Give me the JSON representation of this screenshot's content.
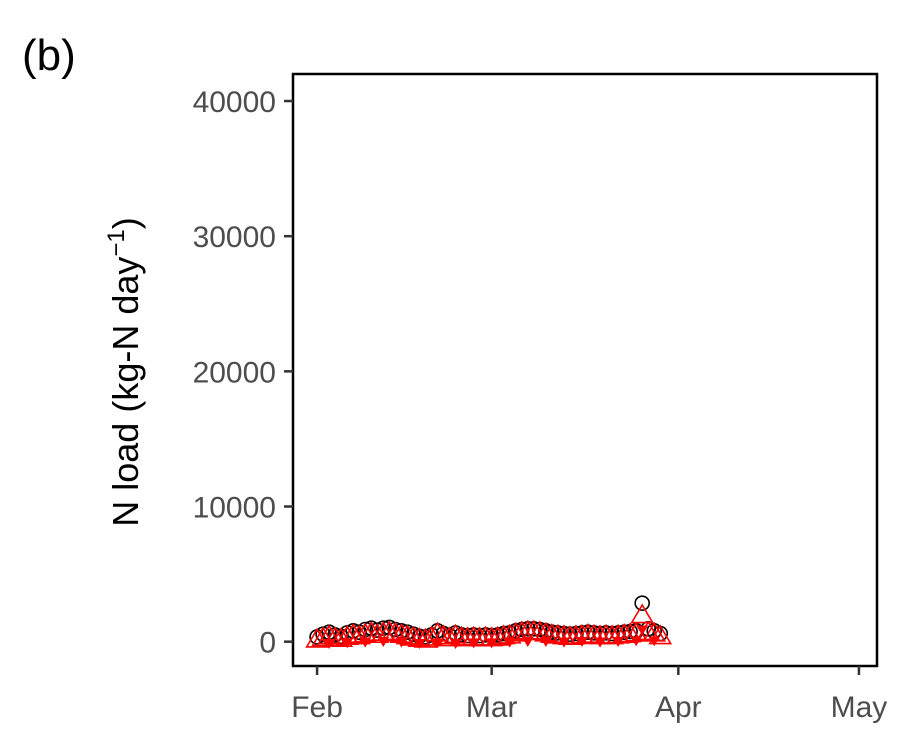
{
  "panel_label": "(b)",
  "chart_data": {
    "type": "scatter",
    "title": "",
    "xlabel": "",
    "ylabel": "N load (kg-N day",
    "ylabel_sup": "−1",
    "ylabel_close": ")",
    "xlim": [
      "2000-01-28",
      "2000-05-04"
    ],
    "ylim": [
      -1800,
      42000
    ],
    "x_ticks": [
      {
        "date": "2000-02-01",
        "label": "Feb"
      },
      {
        "date": "2000-03-01",
        "label": "Mar"
      },
      {
        "date": "2000-04-01",
        "label": "Apr"
      },
      {
        "date": "2000-05-01",
        "label": "May"
      }
    ],
    "y_ticks": [
      {
        "value": 0,
        "label": "0"
      },
      {
        "value": 10000,
        "label": "10000"
      },
      {
        "value": 20000,
        "label": "20000"
      },
      {
        "value": 30000,
        "label": "30000"
      },
      {
        "value": 40000,
        "label": "40000"
      }
    ],
    "grid": false,
    "series": [
      {
        "marker": "circle",
        "color": "#000000",
        "points": [
          {
            "x": "2000-02-01",
            "y": 350
          },
          {
            "x": "2000-02-02",
            "y": 550
          },
          {
            "x": "2000-02-03",
            "y": 700
          },
          {
            "x": "2000-02-04",
            "y": 500
          },
          {
            "x": "2000-02-05",
            "y": 400
          },
          {
            "x": "2000-02-06",
            "y": 650
          },
          {
            "x": "2000-02-07",
            "y": 800
          },
          {
            "x": "2000-02-08",
            "y": 700
          },
          {
            "x": "2000-02-09",
            "y": 900
          },
          {
            "x": "2000-02-10",
            "y": 1000
          },
          {
            "x": "2000-02-11",
            "y": 850
          },
          {
            "x": "2000-02-12",
            "y": 1000
          },
          {
            "x": "2000-02-13",
            "y": 1050
          },
          {
            "x": "2000-02-14",
            "y": 900
          },
          {
            "x": "2000-02-15",
            "y": 800
          },
          {
            "x": "2000-02-16",
            "y": 700
          },
          {
            "x": "2000-02-17",
            "y": 550
          },
          {
            "x": "2000-02-18",
            "y": 400
          },
          {
            "x": "2000-02-19",
            "y": 350
          },
          {
            "x": "2000-02-20",
            "y": 500
          },
          {
            "x": "2000-02-21",
            "y": 800
          },
          {
            "x": "2000-02-22",
            "y": 600
          },
          {
            "x": "2000-02-23",
            "y": 450
          },
          {
            "x": "2000-02-24",
            "y": 650
          },
          {
            "x": "2000-02-25",
            "y": 500
          },
          {
            "x": "2000-02-26",
            "y": 450
          },
          {
            "x": "2000-02-27",
            "y": 500
          },
          {
            "x": "2000-02-28",
            "y": 450
          },
          {
            "x": "2000-02-29",
            "y": 500
          },
          {
            "x": "2000-03-01",
            "y": 450
          },
          {
            "x": "2000-03-02",
            "y": 500
          },
          {
            "x": "2000-03-03",
            "y": 600
          },
          {
            "x": "2000-03-04",
            "y": 650
          },
          {
            "x": "2000-03-05",
            "y": 800
          },
          {
            "x": "2000-03-06",
            "y": 900
          },
          {
            "x": "2000-03-07",
            "y": 950
          },
          {
            "x": "2000-03-08",
            "y": 950
          },
          {
            "x": "2000-03-09",
            "y": 900
          },
          {
            "x": "2000-03-10",
            "y": 800
          },
          {
            "x": "2000-03-11",
            "y": 700
          },
          {
            "x": "2000-03-12",
            "y": 650
          },
          {
            "x": "2000-03-13",
            "y": 600
          },
          {
            "x": "2000-03-14",
            "y": 550
          },
          {
            "x": "2000-03-15",
            "y": 600
          },
          {
            "x": "2000-03-16",
            "y": 650
          },
          {
            "x": "2000-03-17",
            "y": 700
          },
          {
            "x": "2000-03-18",
            "y": 650
          },
          {
            "x": "2000-03-19",
            "y": 600
          },
          {
            "x": "2000-03-20",
            "y": 650
          },
          {
            "x": "2000-03-21",
            "y": 600
          },
          {
            "x": "2000-03-22",
            "y": 650
          },
          {
            "x": "2000-03-23",
            "y": 700
          },
          {
            "x": "2000-03-24",
            "y": 750
          },
          {
            "x": "2000-03-25",
            "y": 800
          },
          {
            "x": "2000-03-26",
            "y": 2850
          },
          {
            "x": "2000-03-27",
            "y": 950
          },
          {
            "x": "2000-03-28",
            "y": 800
          },
          {
            "x": "2000-03-29",
            "y": 600
          }
        ]
      },
      {
        "marker": "triangle",
        "color": "#ff0000",
        "points": [
          {
            "x": "2000-02-01",
            "y": 100
          },
          {
            "x": "2000-02-02",
            "y": 200
          },
          {
            "x": "2000-02-03",
            "y": 350
          },
          {
            "x": "2000-02-04",
            "y": 200
          },
          {
            "x": "2000-02-05",
            "y": 150
          },
          {
            "x": "2000-02-06",
            "y": 300
          },
          {
            "x": "2000-02-07",
            "y": 450
          },
          {
            "x": "2000-02-08",
            "y": 350
          },
          {
            "x": "2000-02-09",
            "y": 500
          },
          {
            "x": "2000-02-10",
            "y": 600
          },
          {
            "x": "2000-02-11",
            "y": 450
          },
          {
            "x": "2000-02-12",
            "y": 600
          },
          {
            "x": "2000-02-13",
            "y": 650
          },
          {
            "x": "2000-02-14",
            "y": 550
          },
          {
            "x": "2000-02-15",
            "y": 450
          },
          {
            "x": "2000-02-16",
            "y": 350
          },
          {
            "x": "2000-02-17",
            "y": 250
          },
          {
            "x": "2000-02-18",
            "y": 150
          },
          {
            "x": "2000-02-19",
            "y": 100
          },
          {
            "x": "2000-02-20",
            "y": 250
          },
          {
            "x": "2000-02-21",
            "y": 550
          },
          {
            "x": "2000-02-22",
            "y": 350
          },
          {
            "x": "2000-02-23",
            "y": 200
          },
          {
            "x": "2000-02-24",
            "y": 400
          },
          {
            "x": "2000-02-25",
            "y": 250
          },
          {
            "x": "2000-02-26",
            "y": 200
          },
          {
            "x": "2000-02-27",
            "y": 250
          },
          {
            "x": "2000-02-28",
            "y": 200
          },
          {
            "x": "2000-02-29",
            "y": 250
          },
          {
            "x": "2000-03-01",
            "y": 200
          },
          {
            "x": "2000-03-02",
            "y": 250
          },
          {
            "x": "2000-03-03",
            "y": 350
          },
          {
            "x": "2000-03-04",
            "y": 400
          },
          {
            "x": "2000-03-05",
            "y": 550
          },
          {
            "x": "2000-03-06",
            "y": 650
          },
          {
            "x": "2000-03-07",
            "y": 700
          },
          {
            "x": "2000-03-08",
            "y": 700
          },
          {
            "x": "2000-03-09",
            "y": 650
          },
          {
            "x": "2000-03-10",
            "y": 550
          },
          {
            "x": "2000-03-11",
            "y": 450
          },
          {
            "x": "2000-03-12",
            "y": 400
          },
          {
            "x": "2000-03-13",
            "y": 350
          },
          {
            "x": "2000-03-14",
            "y": 300
          },
          {
            "x": "2000-03-15",
            "y": 350
          },
          {
            "x": "2000-03-16",
            "y": 400
          },
          {
            "x": "2000-03-17",
            "y": 450
          },
          {
            "x": "2000-03-18",
            "y": 400
          },
          {
            "x": "2000-03-19",
            "y": 350
          },
          {
            "x": "2000-03-20",
            "y": 400
          },
          {
            "x": "2000-03-21",
            "y": 350
          },
          {
            "x": "2000-03-22",
            "y": 400
          },
          {
            "x": "2000-03-23",
            "y": 450
          },
          {
            "x": "2000-03-24",
            "y": 500
          },
          {
            "x": "2000-03-25",
            "y": 550
          },
          {
            "x": "2000-03-26",
            "y": 1900
          },
          {
            "x": "2000-03-27",
            "y": 650
          },
          {
            "x": "2000-03-28",
            "y": 550
          },
          {
            "x": "2000-03-29",
            "y": 350
          }
        ]
      },
      {
        "marker": "inverted-triangle",
        "color": "#ff0000",
        "points": [
          {
            "x": "2000-02-03",
            "y": -100
          },
          {
            "x": "2000-02-06",
            "y": -50
          },
          {
            "x": "2000-02-09",
            "y": 0
          },
          {
            "x": "2000-02-12",
            "y": 50
          },
          {
            "x": "2000-02-15",
            "y": 0
          },
          {
            "x": "2000-02-18",
            "y": -100
          },
          {
            "x": "2000-02-21",
            "y": -50
          },
          {
            "x": "2000-02-24",
            "y": -100
          },
          {
            "x": "2000-02-27",
            "y": -50
          },
          {
            "x": "2000-03-01",
            "y": -50
          },
          {
            "x": "2000-03-04",
            "y": 0
          },
          {
            "x": "2000-03-07",
            "y": 50
          },
          {
            "x": "2000-03-10",
            "y": 50
          },
          {
            "x": "2000-03-13",
            "y": 0
          },
          {
            "x": "2000-03-16",
            "y": 50
          },
          {
            "x": "2000-03-19",
            "y": 0
          },
          {
            "x": "2000-03-22",
            "y": 50
          },
          {
            "x": "2000-03-25",
            "y": 100
          },
          {
            "x": "2000-03-26",
            "y": 900
          },
          {
            "x": "2000-03-28",
            "y": 100
          }
        ]
      }
    ]
  }
}
